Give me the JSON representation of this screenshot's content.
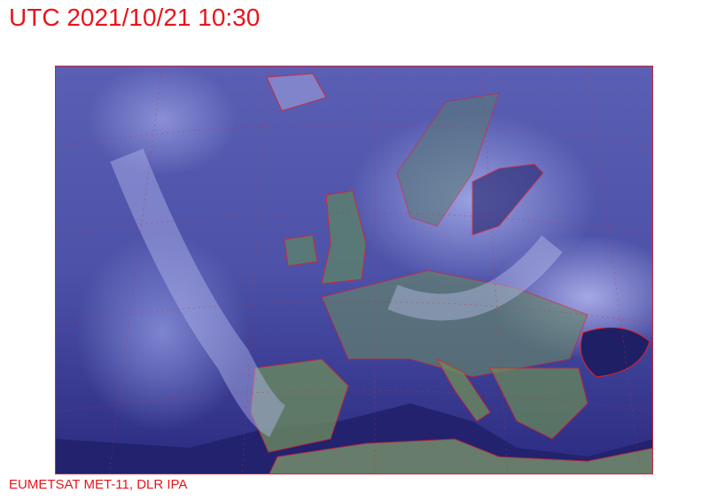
{
  "header": {
    "title": "UTC 2021/10/21 10:30"
  },
  "footer": {
    "credit": "EUMETSAT MET-11, DLR IPA"
  },
  "colors": {
    "text": "#e8141c",
    "coastline": "#e0202a",
    "ocean": "#23237a",
    "land": "#5f8a5a",
    "cloud": "#a8aee8"
  }
}
